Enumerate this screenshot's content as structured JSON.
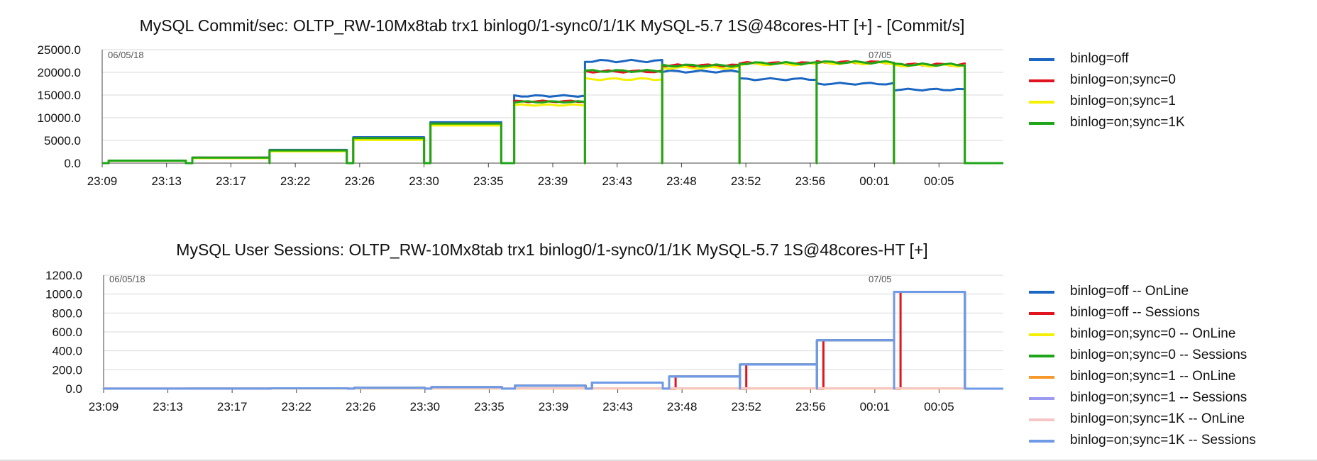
{
  "chart_data": [
    {
      "type": "line",
      "title": "MySQL Commit/sec: OLTP_RW-10Mx8tab trx1 binlog0/1-sync0/1/1K MySQL-5.7 1S@48cores-HT [+] - [Commit/s]",
      "date_left": "06/05/18",
      "date_right": "07/05",
      "xticks": [
        "23:09",
        "23:13",
        "23:17",
        "23:22",
        "23:26",
        "23:30",
        "23:35",
        "23:39",
        "23:43",
        "23:48",
        "23:52",
        "23:56",
        "00:01",
        "00:05"
      ],
      "yticks": [
        "0.0",
        "5000.0",
        "10000.0",
        "15000.0",
        "20000.0",
        "25000.0"
      ],
      "ylim": [
        0,
        25000
      ],
      "xlim": [
        0,
        14
      ],
      "levels_note": "x in tick-interval units (0 = 23:09), y in Commit/s",
      "series": [
        {
          "name": "binlog=off",
          "color": "#1a66c2",
          "levels": [
            [
              0.1,
              1.3,
              550
            ],
            [
              1.4,
              2.6,
              1200
            ],
            [
              2.6,
              3.8,
              2900
            ],
            [
              3.9,
              5.0,
              5700
            ],
            [
              5.1,
              6.2,
              9000
            ],
            [
              6.4,
              7.5,
              14800
            ],
            [
              7.5,
              8.7,
              22500
            ],
            [
              8.7,
              9.9,
              20200
            ],
            [
              9.9,
              11.1,
              18500
            ],
            [
              11.1,
              12.3,
              17500
            ],
            [
              12.3,
              13.4,
              16200
            ]
          ],
          "start": [
            0.0,
            0
          ],
          "end": [
            14.0,
            0
          ]
        },
        {
          "name": "binlog=on;sync=0",
          "color": "#e0141e",
          "levels": [
            [
              0.1,
              1.3,
              550
            ],
            [
              1.4,
              2.6,
              1200
            ],
            [
              2.6,
              3.8,
              2800
            ],
            [
              3.9,
              5.0,
              5500
            ],
            [
              5.1,
              6.2,
              8700
            ],
            [
              6.4,
              7.5,
              13600
            ],
            [
              7.5,
              8.7,
              20200
            ],
            [
              8.7,
              9.9,
              21500
            ],
            [
              9.9,
              11.1,
              22000
            ],
            [
              11.1,
              12.3,
              22200
            ],
            [
              12.3,
              13.4,
              21700
            ]
          ],
          "start": [
            0.0,
            0
          ],
          "end": [
            14.0,
            0
          ]
        },
        {
          "name": "binlog=on;sync=1",
          "color": "#f5f000",
          "levels": [
            [
              0.1,
              1.3,
              500
            ],
            [
              1.4,
              2.6,
              1100
            ],
            [
              2.6,
              3.8,
              2600
            ],
            [
              3.9,
              5.0,
              5100
            ],
            [
              5.1,
              6.2,
              8300
            ],
            [
              6.4,
              7.5,
              12800
            ],
            [
              7.5,
              8.7,
              18500
            ],
            [
              8.7,
              9.9,
              21000
            ],
            [
              9.9,
              11.1,
              21800
            ],
            [
              11.1,
              12.3,
              22000
            ],
            [
              12.3,
              13.4,
              21500
            ]
          ],
          "start": [
            0.0,
            0
          ],
          "end": [
            14.0,
            0
          ]
        },
        {
          "name": "binlog=on;sync=1K",
          "color": "#1fa51a",
          "levels": [
            [
              0.1,
              1.3,
              550
            ],
            [
              1.4,
              2.6,
              1200
            ],
            [
              2.6,
              3.8,
              2800
            ],
            [
              3.9,
              5.0,
              5500
            ],
            [
              5.1,
              6.2,
              8700
            ],
            [
              6.4,
              7.5,
              13500
            ],
            [
              7.5,
              8.7,
              20300
            ],
            [
              8.7,
              9.9,
              21500
            ],
            [
              9.9,
              11.1,
              22000
            ],
            [
              11.1,
              12.3,
              22200
            ],
            [
              12.3,
              13.4,
              21700
            ]
          ],
          "start": [
            0.0,
            0
          ],
          "end": [
            14.0,
            0
          ]
        }
      ]
    },
    {
      "type": "line",
      "title": "MySQL User Sessions: OLTP_RW-10Mx8tab trx1 binlog0/1-sync0/1/1K MySQL-5.7 1S@48cores-HT [+]",
      "date_left": "06/05/18",
      "date_right": "07/05",
      "xticks": [
        "23:09",
        "23:13",
        "23:17",
        "23:22",
        "23:26",
        "23:30",
        "23:35",
        "23:39",
        "23:43",
        "23:48",
        "23:52",
        "23:56",
        "00:01",
        "00:05"
      ],
      "yticks": [
        "0.0",
        "200.0",
        "400.0",
        "600.0",
        "800.0",
        "1000.0",
        "1200.0"
      ],
      "ylim": [
        0,
        1200
      ],
      "xlim": [
        0,
        14
      ],
      "levels_note": "x in tick-interval units (0 = 23:09), y in sessions",
      "series": [
        {
          "name": "binlog=off -- OnLine",
          "color": "#1a66c2",
          "levels": [
            [
              0.0,
              1.3,
              1
            ],
            [
              1.3,
              2.6,
              2
            ],
            [
              2.6,
              3.8,
              4
            ],
            [
              3.9,
              5.0,
              8
            ],
            [
              5.1,
              6.2,
              16
            ],
            [
              6.4,
              7.5,
              32
            ],
            [
              7.6,
              8.7,
              64
            ],
            [
              8.8,
              9.9,
              128
            ],
            [
              9.9,
              11.1,
              256
            ],
            [
              11.1,
              12.3,
              512
            ],
            [
              12.3,
              13.4,
              1024
            ]
          ],
          "start": [
            0.0,
            0
          ],
          "end": [
            14.0,
            0
          ]
        },
        {
          "name": "binlog=off -- Sessions",
          "color": "#e0141e",
          "levels": [
            [
              0.0,
              1.3,
              1
            ],
            [
              1.3,
              2.6,
              2
            ],
            [
              2.6,
              3.8,
              4
            ],
            [
              3.9,
              5.0,
              8
            ],
            [
              5.1,
              6.2,
              16
            ],
            [
              6.4,
              7.5,
              32
            ],
            [
              7.6,
              8.7,
              64
            ],
            [
              8.9,
              9.9,
              128
            ],
            [
              10.0,
              11.1,
              256
            ],
            [
              11.2,
              12.3,
              512
            ],
            [
              12.4,
              13.4,
              1024
            ]
          ],
          "start": [
            0.0,
            0
          ],
          "end": [
            14.0,
            0
          ]
        },
        {
          "name": "binlog=on;sync=0 -- OnLine",
          "color": "#f5f000",
          "levels": [
            [
              0.0,
              13.4,
              3
            ]
          ],
          "start": [
            0.0,
            0
          ],
          "end": [
            14.0,
            0
          ]
        },
        {
          "name": "binlog=on;sync=0 -- Sessions",
          "color": "#1fa51a",
          "levels": [
            [
              0.0,
              1.3,
              1
            ],
            [
              1.3,
              2.6,
              2
            ],
            [
              2.6,
              3.8,
              4
            ],
            [
              3.9,
              5.0,
              8
            ],
            [
              5.1,
              6.2,
              16
            ],
            [
              6.4,
              7.5,
              32
            ],
            [
              7.6,
              8.7,
              64
            ],
            [
              8.8,
              9.9,
              128
            ],
            [
              9.9,
              11.1,
              256
            ],
            [
              11.1,
              12.3,
              512
            ],
            [
              12.3,
              13.4,
              1024
            ]
          ],
          "start": [
            0.0,
            0
          ],
          "end": [
            14.0,
            0
          ]
        },
        {
          "name": "binlog=on;sync=1 -- OnLine",
          "color": "#f59a2a",
          "levels": [
            [
              0.0,
              13.4,
              3
            ]
          ],
          "start": [
            0.0,
            0
          ],
          "end": [
            14.0,
            0
          ]
        },
        {
          "name": "binlog=on;sync=1 -- Sessions",
          "color": "#9a9af0",
          "levels": [
            [
              0.0,
              1.3,
              1
            ],
            [
              1.3,
              2.6,
              2
            ],
            [
              2.6,
              3.8,
              4
            ],
            [
              3.9,
              5.0,
              8
            ],
            [
              5.1,
              6.2,
              16
            ],
            [
              6.4,
              7.5,
              32
            ],
            [
              7.6,
              8.7,
              64
            ],
            [
              8.8,
              9.9,
              128
            ],
            [
              9.9,
              11.1,
              256
            ],
            [
              11.1,
              12.3,
              512
            ],
            [
              12.3,
              13.4,
              1024
            ]
          ],
          "start": [
            0.0,
            0
          ],
          "end": [
            14.0,
            0
          ]
        },
        {
          "name": "binlog=on;sync=1K -- OnLine",
          "color": "#f6c6c6",
          "levels": [
            [
              0.0,
              13.4,
              4
            ]
          ],
          "start": [
            0.0,
            0
          ],
          "end": [
            14.0,
            0
          ]
        },
        {
          "name": "binlog=on;sync=1K -- Sessions",
          "color": "#6f9ae6",
          "levels": [
            [
              0.0,
              1.3,
              1
            ],
            [
              1.3,
              2.6,
              2
            ],
            [
              2.6,
              3.8,
              4
            ],
            [
              3.9,
              5.0,
              8
            ],
            [
              5.1,
              6.2,
              16
            ],
            [
              6.4,
              7.5,
              32
            ],
            [
              7.6,
              8.7,
              64
            ],
            [
              8.8,
              9.9,
              128
            ],
            [
              9.9,
              11.1,
              256
            ],
            [
              11.1,
              12.3,
              512
            ],
            [
              12.3,
              13.4,
              1024
            ]
          ],
          "start": [
            0.0,
            0
          ],
          "end": [
            14.0,
            0
          ]
        }
      ]
    }
  ]
}
